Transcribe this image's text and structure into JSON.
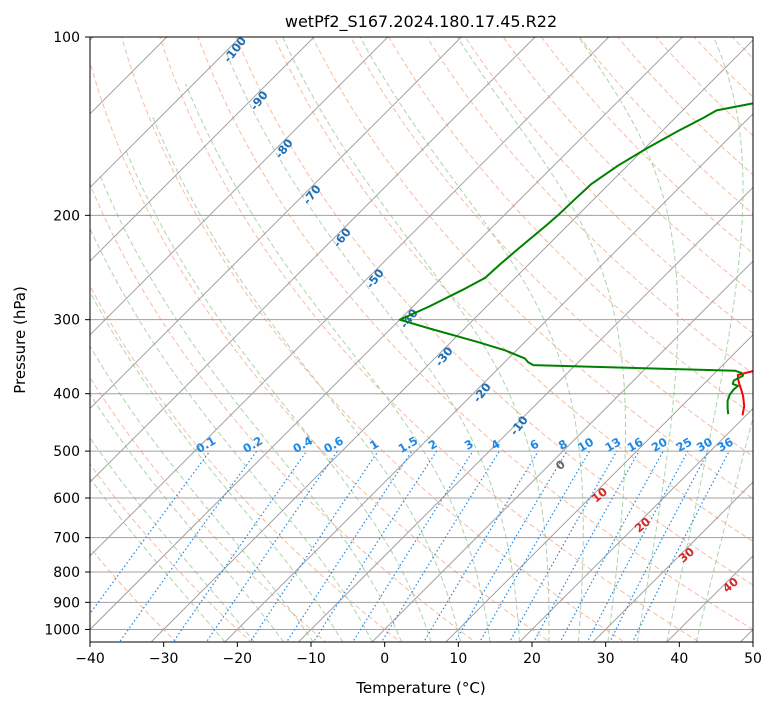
{
  "chart_data": {
    "type": "line",
    "title": "wetPf2_S167.2024.180.17.45.R22",
    "xlabel": "Temperature (°C)",
    "ylabel": "Pressure (hPa)",
    "xlim": [
      -40,
      50
    ],
    "ylim": [
      1050,
      100
    ],
    "y_scale": "log",
    "grid": true,
    "x_ticks": [
      -40,
      -30,
      -20,
      -10,
      0,
      10,
      20,
      30,
      40,
      50
    ],
    "y_ticks": [
      100,
      200,
      300,
      400,
      500,
      600,
      700,
      800,
      900,
      1000
    ],
    "series": [
      {
        "color": "#ff0000",
        "points": [
          [
            19.5,
            435
          ],
          [
            18.5,
            420
          ],
          [
            17,
            404
          ],
          [
            16,
            395
          ],
          [
            14.8,
            385
          ],
          [
            14,
            378
          ],
          [
            13.4,
            372
          ],
          [
            15,
            366
          ],
          [
            17,
            360
          ],
          [
            19,
            356
          ],
          [
            20.8,
            350
          ],
          [
            21.5,
            345
          ],
          [
            21.3,
            335
          ],
          [
            21,
            315
          ],
          [
            20.5,
            300
          ],
          [
            18.8,
            283
          ],
          [
            17.5,
            271
          ],
          [
            15.5,
            246
          ],
          [
            13.5,
            225
          ],
          [
            11.7,
            209
          ],
          [
            9.7,
            196
          ],
          [
            8,
            185
          ],
          [
            7.5,
            172
          ],
          [
            7.9,
            162
          ],
          [
            8.3,
            152
          ],
          [
            8.3,
            144
          ],
          [
            7.3,
            133
          ],
          [
            6.3,
            124
          ],
          [
            5.3,
            114
          ],
          [
            4.5,
            104
          ],
          [
            4.3,
            100
          ]
        ]
      },
      {
        "color": "#008000",
        "points": [
          [
            17.4,
            433
          ],
          [
            16.5,
            423
          ],
          [
            15.5,
            411
          ],
          [
            15,
            402
          ],
          [
            14.8,
            394
          ],
          [
            14.9,
            388
          ],
          [
            13.9,
            385
          ],
          [
            13.6,
            380
          ],
          [
            14.2,
            373
          ],
          [
            13.6,
            369
          ],
          [
            12.5,
            366
          ],
          [
            -15.7,
            358
          ],
          [
            -16.8,
            354
          ],
          [
            -17.7,
            349
          ],
          [
            -21.5,
            338
          ],
          [
            -26.5,
            327
          ],
          [
            -35,
            310
          ],
          [
            -40,
            300
          ],
          [
            -37.8,
            285
          ],
          [
            -35.5,
            267
          ],
          [
            -34.1,
            255
          ],
          [
            -33.9,
            242
          ],
          [
            -33.6,
            230
          ],
          [
            -33.3,
            220
          ],
          [
            -32.9,
            208
          ],
          [
            -32.7,
            200
          ],
          [
            -32.6,
            189
          ],
          [
            -32.4,
            177
          ],
          [
            -31.3,
            165
          ],
          [
            -29.7,
            154
          ],
          [
            -27.8,
            144
          ],
          [
            -26.2,
            137
          ],
          [
            -25.4,
            133
          ],
          [
            -21.5,
            129.5
          ],
          [
            -18.5,
            128.5
          ],
          [
            -15,
            127
          ],
          [
            -11,
            124
          ],
          [
            -8.5,
            120
          ],
          [
            -6.5,
            115
          ],
          [
            -4.8,
            110
          ],
          [
            -3,
            104
          ],
          [
            -1.1,
            100
          ]
        ]
      }
    ],
    "annotations": {
      "blue_labels": [
        "-100",
        "-90",
        "-80",
        "-70",
        "-60",
        "-50",
        "-40",
        "-30",
        "-20",
        "-10"
      ],
      "mixing_ratio_labels": [
        "0.1",
        "0.2",
        "0.4",
        "0.6",
        "1",
        "1.5",
        "2",
        "3",
        "4",
        "6",
        "8",
        "10",
        "13",
        "16",
        "20",
        "25",
        "30",
        "36"
      ],
      "red_labels": [
        "10",
        "20",
        "30",
        "40"
      ],
      "gray_label": "0"
    },
    "colors": {
      "temperature": "#ff0000",
      "dewpoint": "#008000",
      "dry_adiabat": "#f4a582",
      "moist_adiabat": "#8fc68f",
      "mixing_ratio": "#1e88e5",
      "isotherm": "#a0a0a0",
      "blue_label": "#1f6fb4",
      "red_label": "#d62728"
    }
  }
}
